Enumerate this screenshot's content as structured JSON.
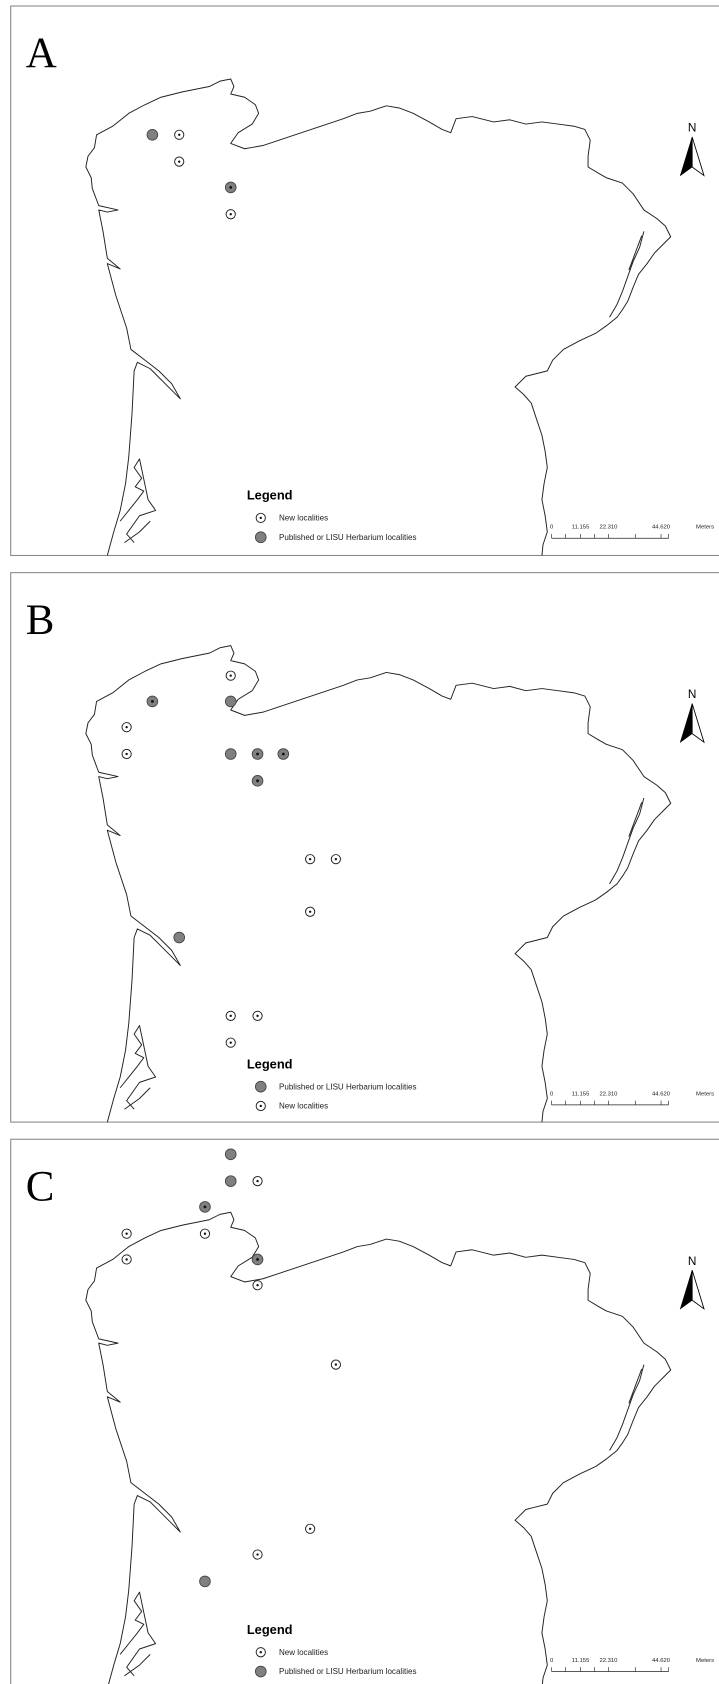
{
  "panels": [
    {
      "label": "A",
      "legend": {
        "title": "Legend",
        "items": [
          "New localities",
          "Published or LISU Herbarium localities"
        ]
      },
      "north": "N",
      "scale": [
        "0",
        "11.155",
        "22.310",
        "44.620",
        "Meters"
      ]
    },
    {
      "label": "B",
      "legend": {
        "title": "Legend",
        "items": [
          "Published or LISU Herbarium localities",
          "New localities"
        ]
      },
      "north": "N",
      "scale": [
        "0",
        "11.155",
        "22.310",
        "44.620",
        "Meters"
      ]
    },
    {
      "label": "C",
      "legend": {
        "title": "Legend",
        "items": [
          "New localities",
          "Published or LISU Herbarium localities"
        ]
      },
      "north": "N",
      "scale": [
        "0",
        "11.155",
        "22.310",
        "44.620",
        "Meters"
      ]
    }
  ]
}
